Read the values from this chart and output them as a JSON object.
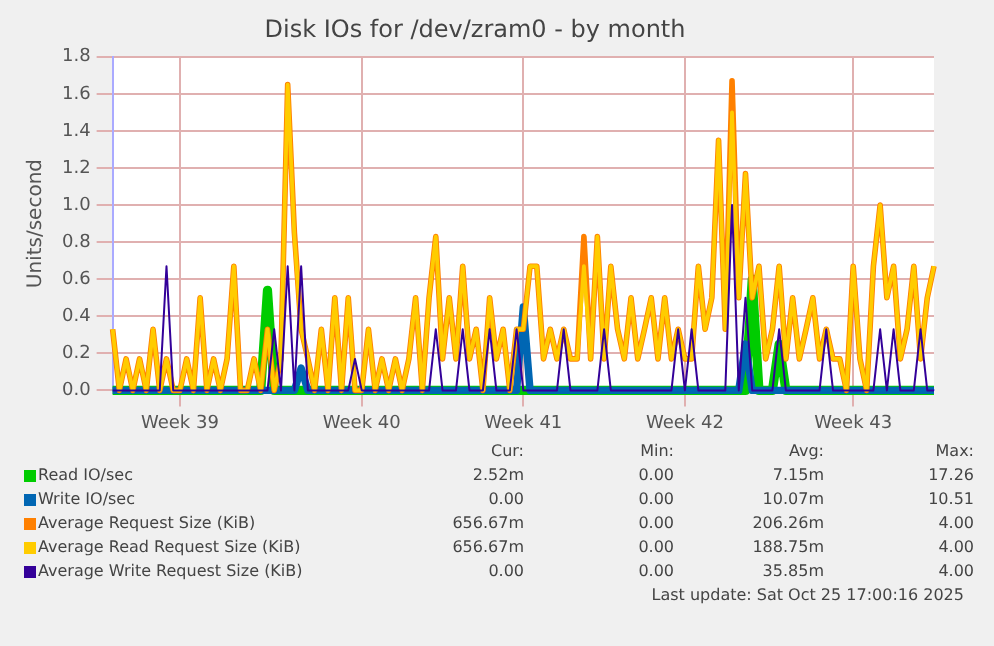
{
  "chart_data": {
    "type": "line",
    "title": "Disk IOs for /dev/zram0 - by month",
    "ylabel": "Units/second",
    "categories": [
      null,
      null,
      null,
      null,
      null,
      null,
      null,
      null,
      null,
      null,
      "Week 39",
      null,
      null,
      null,
      null,
      null,
      null,
      null,
      null,
      null,
      null,
      null,
      null,
      null,
      null,
      null,
      null,
      null,
      null,
      null,
      null,
      null,
      null,
      null,
      null,
      null,
      null,
      "Week 40",
      null,
      null,
      null,
      null,
      null,
      null,
      null,
      null,
      null,
      null,
      null,
      null,
      null,
      null,
      null,
      null,
      null,
      null,
      null,
      null,
      null,
      null,
      null,
      "Week 41",
      null,
      null,
      null,
      null,
      null,
      null,
      null,
      null,
      null,
      null,
      null,
      null,
      null,
      null,
      null,
      null,
      null,
      null,
      null,
      null,
      null,
      null,
      null,
      "Week 42",
      null,
      null,
      null,
      null,
      null,
      null,
      null,
      null,
      null,
      null,
      null,
      null,
      null,
      null,
      null,
      null,
      null,
      null,
      null,
      null,
      null,
      null,
      null,
      null,
      "Week 43",
      null,
      null,
      null,
      null,
      null,
      null,
      null,
      null,
      null,
      null,
      null,
      null
    ],
    "ylim": [
      0,
      1.8
    ],
    "yticks": [
      {
        "value": 0,
        "label": "0.0"
      },
      {
        "value": 0.2,
        "label": "0.2"
      },
      {
        "value": 0.4,
        "label": "0.4"
      },
      {
        "value": 0.6,
        "label": "0.6"
      },
      {
        "value": 0.8,
        "label": "0.8"
      },
      {
        "value": 1,
        "label": "1.0"
      },
      {
        "value": 1.2,
        "label": "1.2"
      },
      {
        "value": 1.4,
        "label": "1.4"
      },
      {
        "value": 1.6,
        "label": "1.6"
      },
      {
        "value": 1.8,
        "label": "1.8"
      }
    ],
    "grid": true,
    "legend": "bottom",
    "marker": "none",
    "line_style": "solid",
    "series": [
      {
        "name": "Read IO/sec",
        "color": "#00cc00",
        "values": [
          0,
          0,
          0,
          0,
          0,
          0,
          0,
          0,
          0,
          0,
          0,
          0,
          0,
          0,
          0,
          0,
          0,
          0,
          0,
          0,
          0,
          0,
          0,
          0.54,
          0,
          0,
          0,
          0,
          0,
          0,
          0,
          0,
          0,
          0,
          0,
          0,
          0,
          0,
          0,
          0,
          0,
          0,
          0,
          0,
          0,
          0,
          0,
          0,
          0,
          0,
          0,
          0,
          0,
          0,
          0,
          0,
          0,
          0,
          0,
          0,
          0,
          0,
          0,
          0,
          0,
          0,
          0,
          0,
          0,
          0,
          0,
          0,
          0,
          0,
          0,
          0,
          0,
          0,
          0,
          0,
          0,
          0,
          0,
          0,
          0,
          0,
          0,
          0,
          0,
          0,
          0,
          0,
          0,
          0,
          0,
          0.6,
          0,
          0,
          0,
          0.25,
          0,
          0,
          0,
          0,
          0,
          0,
          0,
          0,
          0,
          0,
          0,
          0,
          0,
          0,
          0,
          0,
          0,
          0,
          0,
          0,
          0,
          0,
          0
        ]
      },
      {
        "name": "Write IO/sec",
        "color": "#0066b3",
        "values": [
          0,
          0,
          0,
          0,
          0,
          0,
          0,
          0,
          0,
          0,
          0,
          0,
          0,
          0,
          0,
          0,
          0,
          0,
          0,
          0,
          0,
          0,
          0,
          0,
          0,
          0,
          0,
          0,
          0.12,
          0,
          0,
          0,
          0,
          0,
          0,
          0,
          0,
          0,
          0,
          0,
          0,
          0,
          0,
          0,
          0,
          0,
          0,
          0,
          0,
          0,
          0,
          0,
          0,
          0,
          0,
          0,
          0,
          0,
          0,
          0,
          0,
          0.45,
          0,
          0,
          0,
          0,
          0,
          0,
          0,
          0,
          0,
          0,
          0,
          0,
          0,
          0,
          0,
          0,
          0,
          0,
          0,
          0,
          0,
          0,
          0,
          0,
          0,
          0,
          0,
          0,
          0,
          0,
          0,
          0,
          0.25,
          0,
          0,
          0,
          0,
          0,
          0,
          0,
          0,
          0,
          0,
          0,
          0,
          0,
          0,
          0,
          0,
          0,
          0,
          0,
          0,
          0,
          0,
          0,
          0,
          0,
          0,
          0,
          0
        ]
      },
      {
        "name": "Average Request Size (KiB)",
        "color": "#ff8000",
        "values": [
          0.33,
          0,
          0.17,
          0,
          0.17,
          0,
          0.33,
          0,
          0.17,
          0,
          0,
          0.17,
          0,
          0.5,
          0,
          0.17,
          0,
          0.17,
          0.67,
          0,
          0,
          0.17,
          0,
          0.33,
          0,
          0.17,
          1.65,
          0.85,
          0.33,
          0.17,
          0,
          0.33,
          0,
          0.5,
          0,
          0.5,
          0,
          0,
          0.33,
          0,
          0.17,
          0,
          0.17,
          0,
          0.17,
          0.5,
          0,
          0.5,
          0.83,
          0.17,
          0.5,
          0.17,
          0.67,
          0.17,
          0.33,
          0,
          0.5,
          0.17,
          0.33,
          0,
          0.33,
          0.33,
          0.67,
          0.67,
          0.17,
          0.33,
          0.17,
          0.33,
          0.17,
          0.17,
          0.83,
          0.17,
          0.83,
          0.17,
          0.67,
          0.33,
          0.17,
          0.5,
          0.17,
          0.33,
          0.5,
          0.17,
          0.5,
          0.17,
          0.33,
          0.17,
          0.17,
          0.67,
          0.33,
          0.5,
          1.35,
          0.33,
          1.67,
          0.5,
          1.17,
          0.5,
          0.67,
          0.17,
          0.33,
          0.67,
          0.17,
          0.5,
          0.17,
          0.33,
          0.5,
          0.17,
          0.33,
          0.17,
          0.17,
          0,
          0.67,
          0.17,
          0,
          0.67,
          1.0,
          0.5,
          0.67,
          0.17,
          0.33,
          0.67,
          0.17,
          0.5,
          0.67
        ]
      },
      {
        "name": "Average Read Request Size (KiB)",
        "color": "#ffcc00",
        "values": [
          0.33,
          0,
          0.17,
          0,
          0.17,
          0,
          0.33,
          0,
          0.17,
          0,
          0,
          0.17,
          0,
          0.5,
          0,
          0.17,
          0,
          0.17,
          0.67,
          0,
          0,
          0.17,
          0,
          0.33,
          0,
          0.17,
          1.65,
          0.83,
          0.33,
          0.17,
          0,
          0.33,
          0,
          0.5,
          0,
          0.5,
          0,
          0,
          0.33,
          0,
          0.17,
          0,
          0.17,
          0,
          0.17,
          0.5,
          0,
          0.5,
          0.83,
          0.17,
          0.5,
          0.17,
          0.67,
          0.17,
          0.33,
          0,
          0.5,
          0.17,
          0.33,
          0,
          0.33,
          0.33,
          0.67,
          0.67,
          0.17,
          0.33,
          0.17,
          0.33,
          0.17,
          0.17,
          0.67,
          0.17,
          0.83,
          0.17,
          0.67,
          0.33,
          0.17,
          0.5,
          0.17,
          0.33,
          0.5,
          0.17,
          0.5,
          0.17,
          0.33,
          0.17,
          0.17,
          0.67,
          0.33,
          0.5,
          1.35,
          0.33,
          1.5,
          0.5,
          1.17,
          0.5,
          0.67,
          0.17,
          0.33,
          0.67,
          0.17,
          0.5,
          0.17,
          0.33,
          0.5,
          0.17,
          0.33,
          0.17,
          0.17,
          0,
          0.67,
          0.17,
          0,
          0.67,
          1.0,
          0.5,
          0.67,
          0.17,
          0.33,
          0.67,
          0.17,
          0.5,
          0.67
        ]
      },
      {
        "name": "Average Write Request Size (KiB)",
        "color": "#330099",
        "values": [
          0,
          0,
          0,
          0,
          0,
          0,
          0,
          0,
          0.67,
          0,
          0,
          0,
          0,
          0,
          0,
          0,
          0,
          0,
          0,
          0,
          0,
          0,
          0,
          0,
          0.33,
          0,
          0.67,
          0,
          0.67,
          0,
          0,
          0,
          0,
          0,
          0,
          0,
          0.17,
          0,
          0,
          0,
          0,
          0,
          0,
          0,
          0,
          0,
          0,
          0,
          0.33,
          0,
          0,
          0,
          0.33,
          0,
          0,
          0,
          0.33,
          0,
          0,
          0,
          0.33,
          0,
          0,
          0,
          0,
          0,
          0,
          0.33,
          0,
          0,
          0,
          0,
          0,
          0.33,
          0,
          0,
          0,
          0,
          0,
          0,
          0,
          0,
          0,
          0,
          0.33,
          0,
          0.33,
          0,
          0,
          0,
          0,
          0,
          1.0,
          0,
          0.5,
          0,
          0,
          0,
          0,
          0.33,
          0,
          0,
          0,
          0,
          0,
          0,
          0.33,
          0,
          0,
          0,
          0,
          0,
          0,
          0,
          0.33,
          0,
          0.33,
          0,
          0,
          0,
          0.33,
          0,
          0
        ]
      }
    ],
    "annotations": [
      "Cur:",
      "Min:",
      "Avg:",
      "Max:",
      "2.52m",
      "0.00",
      "7.15m",
      "17.26",
      "0.00",
      "0.00",
      "10.07m",
      "10.51",
      "656.67m",
      "0.00",
      "206.26m",
      "4.00",
      "656.67m",
      "0.00",
      "188.75m",
      "4.00",
      "0.00",
      "0.00",
      "35.85m",
      "4.00",
      "Last update: Sat Oct 25 17:00:16 2025"
    ]
  }
}
